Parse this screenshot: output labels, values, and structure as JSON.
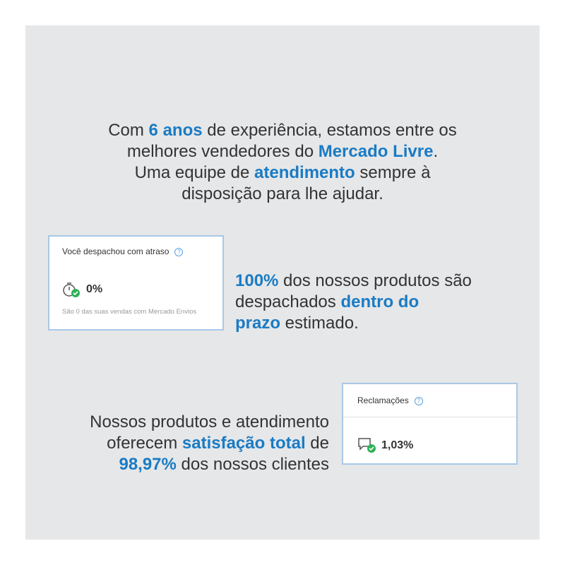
{
  "intro": {
    "lines": [
      [
        "Com ",
        "6 anos",
        " de experiência, estamos entre os"
      ],
      [
        "melhores vendedores do ",
        "Mercado Livre",
        "."
      ],
      [
        "Uma equipe de ",
        "atendimento",
        " sempre à"
      ],
      [
        "disposição para lhe ajudar."
      ]
    ]
  },
  "delay_card": {
    "title": "Você despachou com atraso",
    "value": "0%",
    "note": "São 0 das suas vendas com Mercado Envios"
  },
  "delivery_text": {
    "lines": [
      [
        "100%",
        " dos nossos produtos são"
      ],
      [
        "despachados ",
        "dentro do"
      ],
      [
        "prazo",
        " estimado."
      ]
    ]
  },
  "satisfaction_text": {
    "lines": [
      [
        "Nossos produtos e atendimento"
      ],
      [
        "oferecem ",
        "satisfação total",
        " de"
      ],
      [
        "98,97%",
        " dos nossos clientes"
      ]
    ]
  },
  "claims_card": {
    "title": "Reclamações",
    "value": "1,03%"
  }
}
